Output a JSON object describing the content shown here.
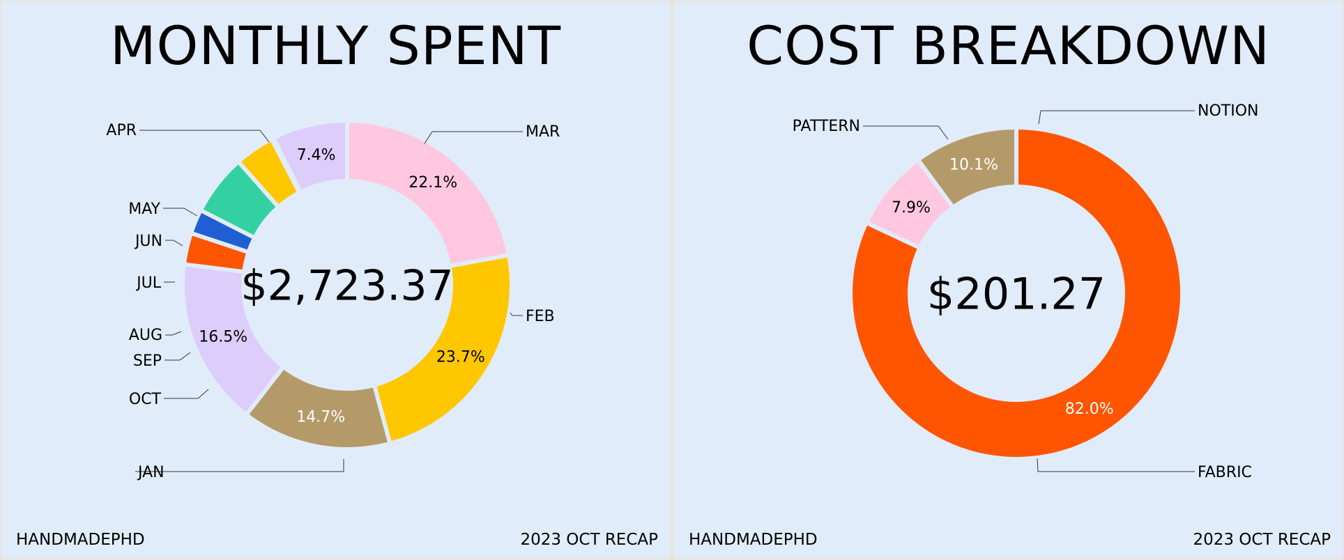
{
  "left_panel": {
    "title": "MONTHLY SPENT",
    "footer_left": "HANDMADEPHD",
    "footer_right": "2023 OCT RECAP"
  },
  "right_panel": {
    "title": "COST BREAKDOWN",
    "footer_left": "HANDMADEPHD",
    "footer_right": "2023 OCT RECAP"
  },
  "chart_data": [
    {
      "type": "pie",
      "title": "MONTHLY SPENT",
      "center_label": "$2,723.37",
      "slices": [
        {
          "label": "JAN",
          "value": 22.1,
          "pct_label": "22.1%",
          "color": "#ffc8e0",
          "label_color": "#000000"
        },
        {
          "label": "FEB",
          "value": 23.7,
          "pct_label": "23.7%",
          "color": "#ffc700",
          "label_color": "#000000"
        },
        {
          "label": "MAR",
          "value": 14.7,
          "pct_label": "14.7%",
          "color": "#b49a68",
          "label_color": "#ffffff"
        },
        {
          "label": "APR",
          "value": 16.5,
          "pct_label": "16.5%",
          "color": "#dccdfb",
          "label_color": "#000000"
        },
        {
          "label": "MAY",
          "value": 3.1,
          "pct_label": "",
          "color": "#ff5500",
          "label_color": "#000000"
        },
        {
          "label": "JUN",
          "value": 2.4,
          "pct_label": "",
          "color": "#1f5fd1",
          "label_color": "#000000"
        },
        {
          "label": "JUL",
          "value": 6.0,
          "pct_label": "",
          "color": "#33d1a1",
          "label_color": "#000000"
        },
        {
          "label": "AUG",
          "value": 3.9,
          "pct_label": "",
          "color": "#ffc700",
          "label_color": "#000000"
        },
        {
          "label": "SEP",
          "value": 0.2,
          "pct_label": "",
          "color": "#ffc8e0",
          "label_color": "#000000"
        },
        {
          "label": "OCT",
          "value": 7.4,
          "pct_label": "7.4%",
          "color": "#dccdfb",
          "label_color": "#000000"
        }
      ]
    },
    {
      "type": "pie",
      "title": "COST BREAKDOWN",
      "center_label": "$201.27",
      "slices": [
        {
          "label": "FABRIC",
          "value": 82.0,
          "pct_label": "82.0%",
          "color": "#ff5500",
          "label_color": "#ffffff"
        },
        {
          "label": "PATTERN",
          "value": 7.9,
          "pct_label": "7.9%",
          "color": "#ffc8e0",
          "label_color": "#000000"
        },
        {
          "label": "NOTION",
          "value": 10.1,
          "pct_label": "10.1%",
          "color": "#b49a68",
          "label_color": "#ffffff"
        }
      ]
    }
  ]
}
